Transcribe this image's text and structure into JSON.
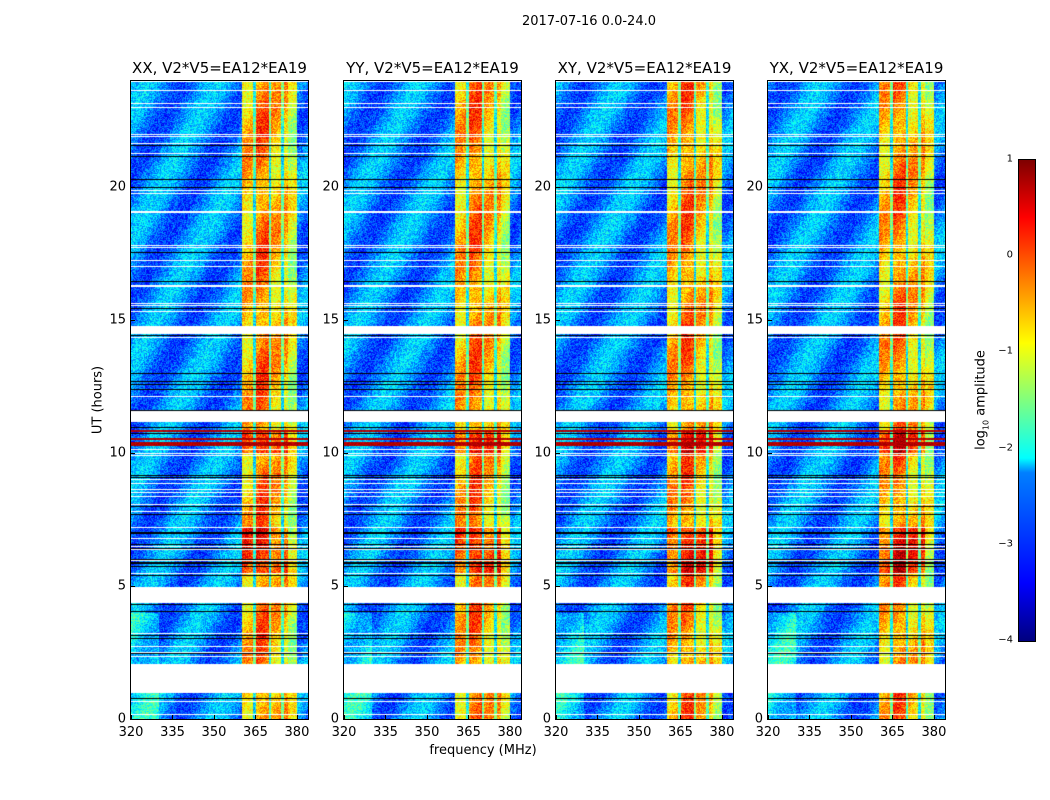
{
  "chart_data": {
    "type": "heatmap",
    "title": "2017-07-16 0.0-24.0",
    "xlabel": "frequency (MHz)",
    "ylabel": "UT (hours)",
    "xlim": [
      320,
      384
    ],
    "ylim": [
      0,
      24
    ],
    "xticks": [
      "320",
      "335",
      "350",
      "365",
      "380"
    ],
    "xtick_values": [
      320,
      335,
      350,
      365,
      380
    ],
    "yticks": [
      "0",
      "5",
      "10",
      "15",
      "20"
    ],
    "ytick_values": [
      0,
      5,
      10,
      15,
      20
    ],
    "panels": [
      {
        "title": "XX, V2*V5=EA12*EA19"
      },
      {
        "title": "YY, V2*V5=EA12*EA19"
      },
      {
        "title": "XY, V2*V5=EA12*EA19"
      },
      {
        "title": "YX, V2*V5=EA12*EA19"
      }
    ],
    "colorbar": {
      "label": "log10 amplitude",
      "label_main": "log",
      "label_sub": "10",
      "label_rest": " amplitude",
      "range": [
        -4,
        1
      ],
      "ticks": [
        "1",
        "0",
        "−1",
        "−2",
        "−3",
        "−4"
      ],
      "tick_values": [
        1,
        0,
        -1,
        -2,
        -3,
        -4
      ],
      "colormap": "jet"
    },
    "features": {
      "background_level": -2.7,
      "rfi_band_mhz": [
        360,
        380
      ],
      "rfi_band_level": -0.3,
      "flagged_time_ranges_hours": [
        [
          1.0,
          2.1
        ],
        [
          4.4,
          5.0
        ],
        [
          11.2,
          11.6
        ],
        [
          14.5,
          14.8
        ]
      ],
      "high_amplitude_time_ranges_hours": [
        [
          5.5,
          7.2
        ],
        [
          10.0,
          10.9
        ]
      ]
    }
  }
}
